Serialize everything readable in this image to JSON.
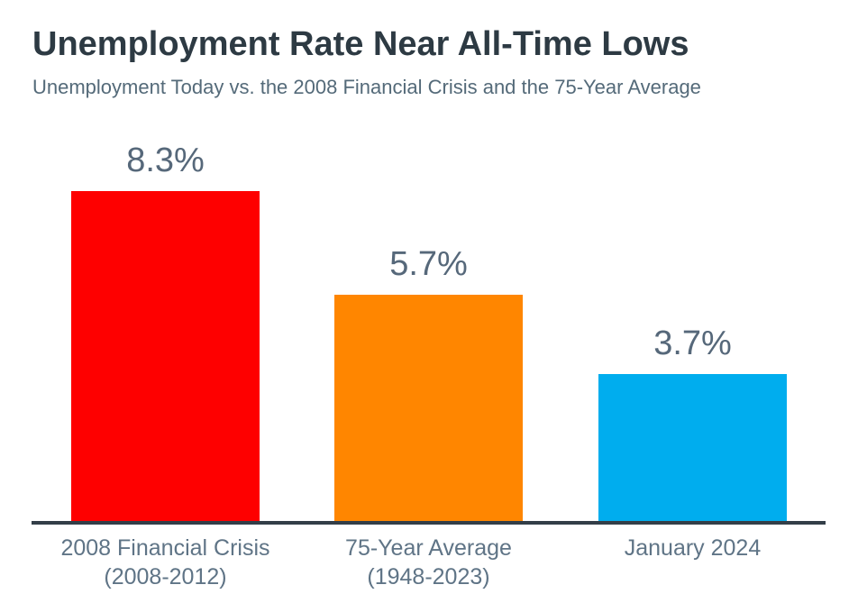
{
  "chart_data": {
    "type": "bar",
    "title": "Unemployment Rate Near All-Time Lows",
    "subtitle": "Unemployment Today vs. the 2008 Financial Crisis and the 75-Year Average",
    "categories": [
      "2008 Financial Crisis\n(2008-2012)",
      "75-Year Average\n(1948-2023)",
      "January 2024"
    ],
    "values": [
      8.3,
      5.7,
      3.7
    ],
    "value_labels": [
      "8.3%",
      "5.7%",
      "3.7%"
    ],
    "series": [
      {
        "name": "Unemployment rate",
        "values": [
          8.3,
          5.7,
          3.7
        ]
      }
    ],
    "bar_colors": [
      "#fe0000",
      "#ff8600",
      "#00adee"
    ],
    "xlabel": "",
    "ylabel": "",
    "ylim": [
      0,
      8.3
    ],
    "grid": false,
    "legend": "none",
    "colors": {
      "background": "#ffffff",
      "title_text": "#2d3a43",
      "subtitle_text": "#546a79",
      "value_label_text": "#56687a",
      "category_label_text": "#5f7486",
      "axis_line": "#333e48"
    }
  }
}
